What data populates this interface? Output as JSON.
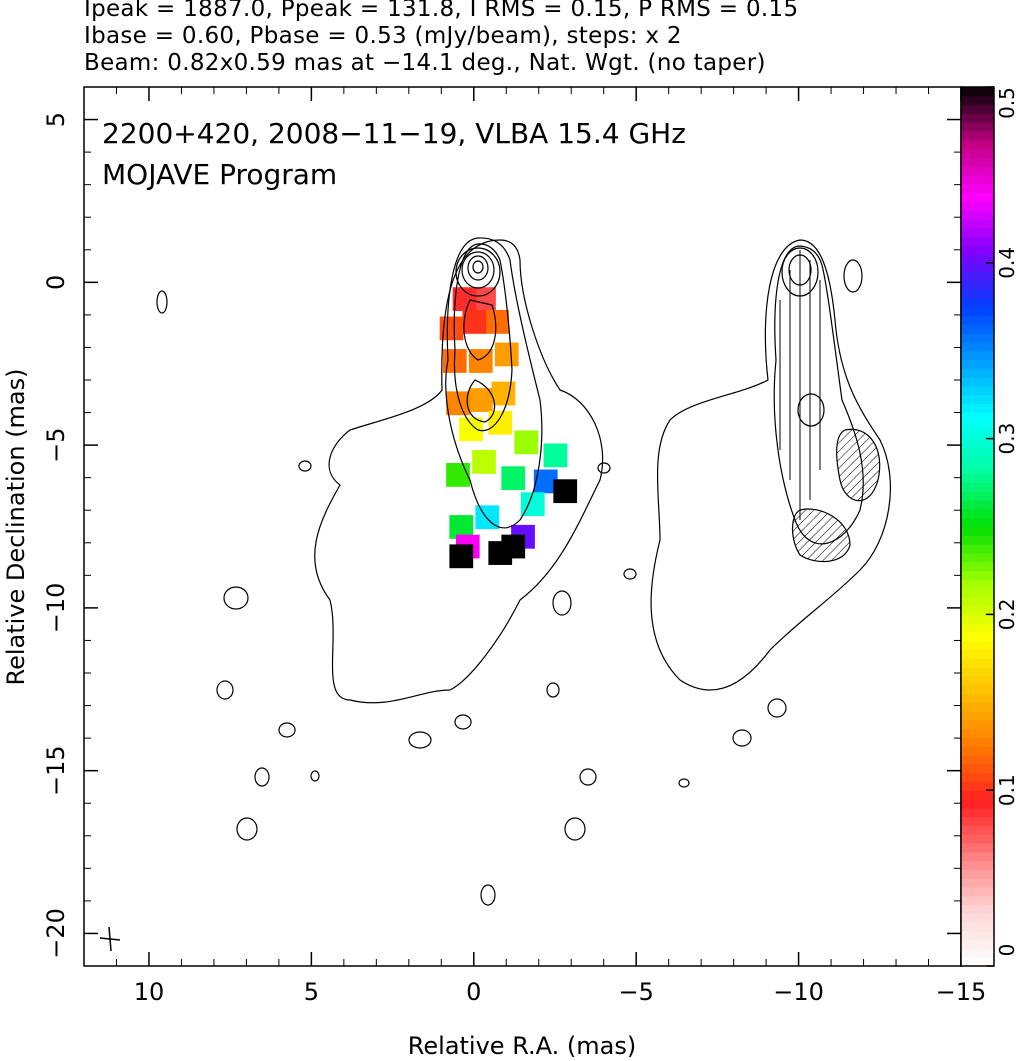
{
  "header": {
    "line1": "Ipeak = 1887.0, Ppeak = 131.8, I RMS = 0.15, P RMS = 0.15",
    "line2": "Ibase = 0.60, Pbase = 0.53 (mJy/beam), steps: x 2",
    "line3": "Beam: 0.82x0.59 mas at −14.1 deg., Nat. Wgt. (no taper)"
  },
  "annotation": {
    "source_line": "2200+420, 2008−11−19, VLBA 15.4 GHz",
    "program_line": "MOJAVE Program"
  },
  "chart_data": {
    "type": "heatmap",
    "title": "",
    "xlabel": "Relative R.A. (mas)",
    "ylabel": "Relative Declination (mas)",
    "xlim": [
      12,
      -15
    ],
    "ylim": [
      -21,
      6
    ],
    "x_ticks": [
      10,
      5,
      0,
      -5,
      -10,
      -15
    ],
    "x_tick_labels": [
      "10",
      "5",
      "0",
      "−5",
      "−10",
      "−15"
    ],
    "y_ticks": [
      5,
      0,
      -5,
      -10,
      -15,
      -20
    ],
    "y_tick_labels": [
      "5",
      "0",
      "−5",
      "−10",
      "−15",
      "−20"
    ],
    "grid": false,
    "colorbar": {
      "min": 0,
      "max": 0.5,
      "ticks": [
        0,
        0.1,
        0.2,
        0.3,
        0.4,
        0.5
      ],
      "tick_labels": [
        "0",
        "0.1",
        "0.2",
        "0.3",
        "0.4",
        "0.5"
      ],
      "colors": [
        "#ffffff",
        "#ffd6d6",
        "#ff8080",
        "#ff2020",
        "#ff7a00",
        "#ffc000",
        "#ffff00",
        "#a0ff00",
        "#00e000",
        "#00ffa0",
        "#00ffff",
        "#00a0ff",
        "#0040ff",
        "#8000ff",
        "#ff00ff",
        "#c00080",
        "#000000"
      ]
    },
    "core_contours": {
      "center": [
        0,
        0
      ],
      "count": 12
    },
    "polarization_image": [
      {
        "x": -0.3,
        "y": -0.5,
        "value": 0.08
      },
      {
        "x": 0.3,
        "y": -0.5,
        "value": 0.09
      },
      {
        "x": -0.7,
        "y": -1.2,
        "value": 0.12
      },
      {
        "x": 0.0,
        "y": -1.2,
        "value": 0.1
      },
      {
        "x": 0.7,
        "y": -1.4,
        "value": 0.11
      },
      {
        "x": -1.0,
        "y": -2.2,
        "value": 0.14
      },
      {
        "x": -0.2,
        "y": -2.4,
        "value": 0.13
      },
      {
        "x": 0.6,
        "y": -2.4,
        "value": 0.12
      },
      {
        "x": -0.9,
        "y": -3.4,
        "value": 0.15
      },
      {
        "x": -0.2,
        "y": -3.6,
        "value": 0.14
      },
      {
        "x": 0.5,
        "y": -3.7,
        "value": 0.13
      },
      {
        "x": -0.8,
        "y": -4.3,
        "value": 0.18
      },
      {
        "x": 0.1,
        "y": -4.5,
        "value": 0.19
      },
      {
        "x": -1.6,
        "y": -4.9,
        "value": 0.22
      },
      {
        "x": -2.5,
        "y": -5.3,
        "value": 0.28
      },
      {
        "x": -0.3,
        "y": -5.5,
        "value": 0.21
      },
      {
        "x": 0.5,
        "y": -5.9,
        "value": 0.24
      },
      {
        "x": -1.2,
        "y": -6.0,
        "value": 0.27
      },
      {
        "x": -2.2,
        "y": -6.1,
        "value": 0.36
      },
      {
        "x": -2.8,
        "y": -6.4,
        "value": 0.5
      },
      {
        "x": -1.8,
        "y": -6.8,
        "value": 0.3
      },
      {
        "x": -0.4,
        "y": -7.2,
        "value": 0.32
      },
      {
        "x": 0.4,
        "y": -7.5,
        "value": 0.26
      },
      {
        "x": -1.5,
        "y": -7.8,
        "value": 0.4
      },
      {
        "x": 0.2,
        "y": -8.1,
        "value": 0.44
      },
      {
        "x": -0.8,
        "y": -8.3,
        "value": 0.5
      },
      {
        "x": 0.4,
        "y": -8.4,
        "value": 0.5
      },
      {
        "x": -1.2,
        "y": -8.1,
        "value": 0.5
      }
    ]
  }
}
